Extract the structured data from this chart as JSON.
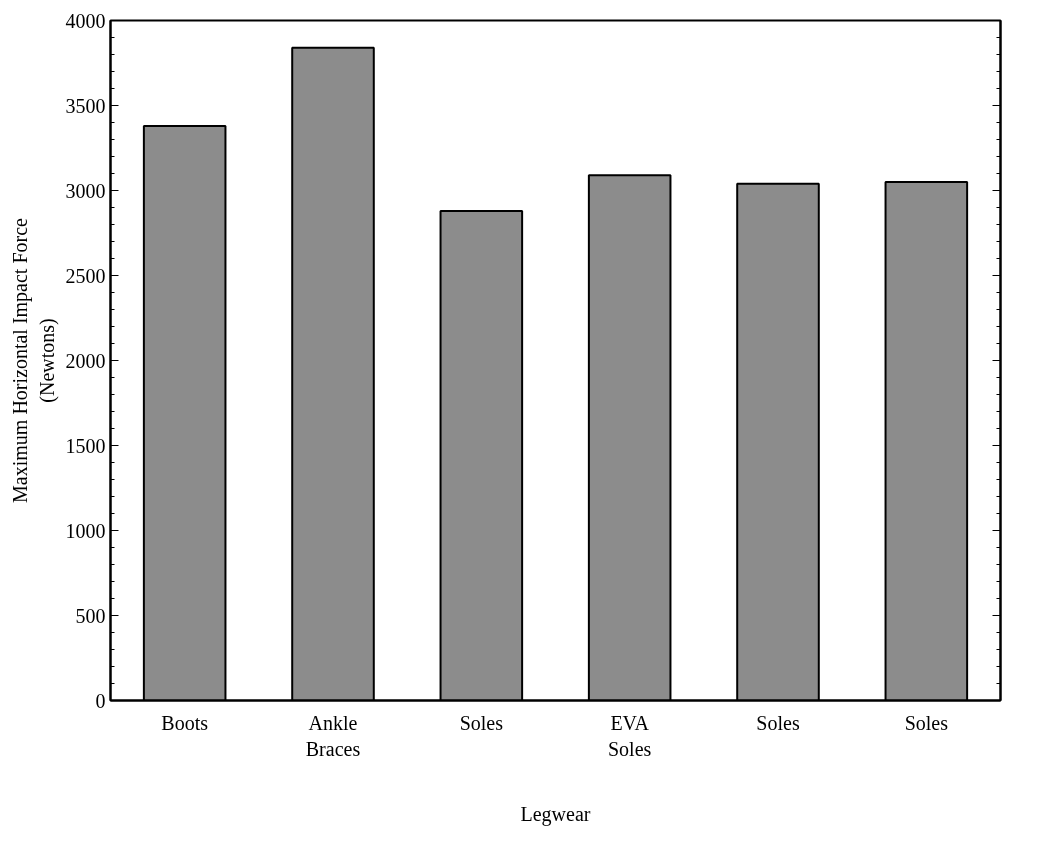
{
  "chart_data": {
    "type": "bar",
    "xlabel": "Legwear",
    "ylabel": "Maximum Horizontal Impact Force (Newtons)",
    "categories": [
      "Boots",
      "Ankle Braces",
      "Soles",
      "EVA Soles",
      "Soles",
      "Soles"
    ],
    "values": [
      3380,
      3840,
      2880,
      3090,
      3040,
      3050
    ],
    "color": "#8c8c8c",
    "ylim": [
      0,
      4000
    ],
    "yticks": [
      0,
      500,
      1000,
      1500,
      2000,
      2500,
      3000,
      3500,
      4000
    ],
    "grid": false
  }
}
